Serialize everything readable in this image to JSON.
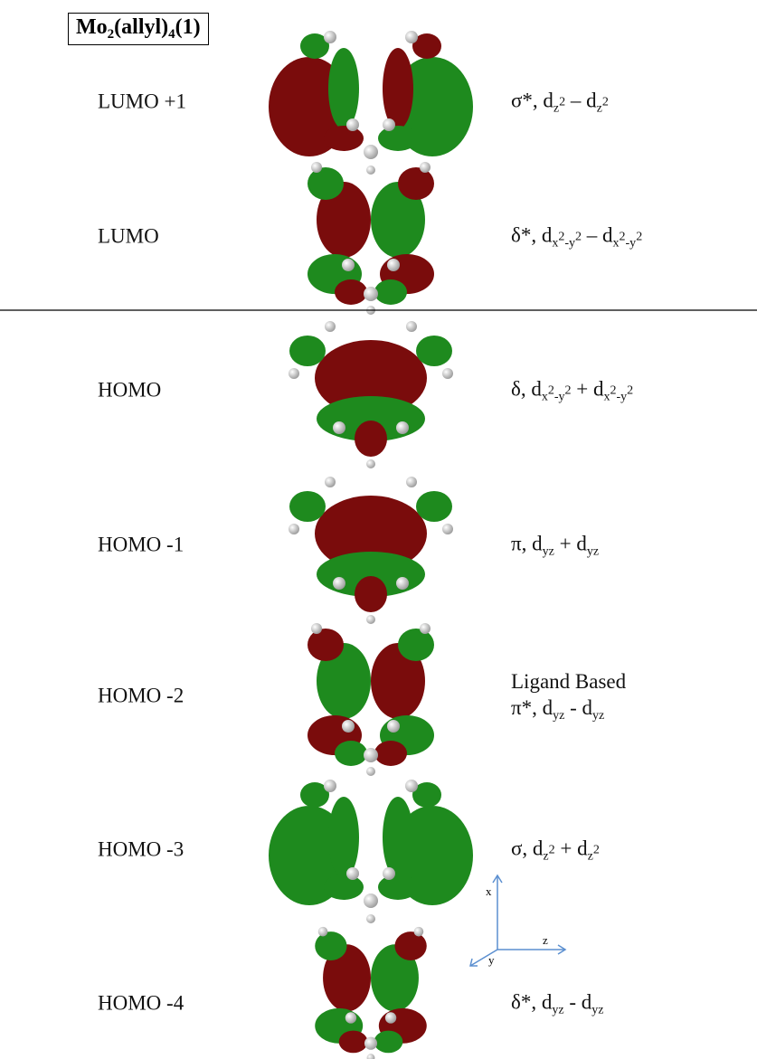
{
  "title": [
    "Mo",
    {
      "sub": "2"
    },
    "(allyl)",
    {
      "sub": "4"
    },
    "(1)"
  ],
  "rows": [
    {
      "name": "LUMO +1",
      "description": [
        [
          "σ*, d",
          {
            "sub": "z"
          },
          {
            "sup": "2"
          },
          " – d",
          {
            "sub": "z"
          },
          {
            "sup": "2"
          }
        ]
      ]
    },
    {
      "name": "LUMO",
      "description": [
        [
          "δ*, d",
          {
            "sub": "x"
          },
          {
            "sup": "2"
          },
          {
            "sub": "-y"
          },
          {
            "sup": "2"
          },
          " – d",
          {
            "sub": "x"
          },
          {
            "sup": "2"
          },
          {
            "sub": "-y"
          },
          {
            "sup": "2"
          }
        ]
      ]
    },
    {
      "name": "HOMO",
      "description": [
        [
          "δ, d",
          {
            "sub": "x"
          },
          {
            "sup": "2"
          },
          {
            "sub": "-y"
          },
          {
            "sup": "2"
          },
          " + d",
          {
            "sub": "x"
          },
          {
            "sup": "2"
          },
          {
            "sub": "-y"
          },
          {
            "sup": "2"
          }
        ]
      ]
    },
    {
      "name": "HOMO -1",
      "description": [
        [
          "π, d",
          {
            "sub": "yz"
          },
          " + d",
          {
            "sub": "yz"
          }
        ]
      ]
    },
    {
      "name": "HOMO -2",
      "description": [
        [
          "Ligand Based"
        ],
        [
          "π*, d",
          {
            "sub": "yz"
          },
          " - d",
          {
            "sub": "yz"
          }
        ]
      ]
    },
    {
      "name": "HOMO -3",
      "description": [
        [
          "σ, d",
          {
            "sub": "z"
          },
          {
            "sup": "2"
          },
          " + d",
          {
            "sub": "z"
          },
          {
            "sup": "2"
          }
        ]
      ]
    },
    {
      "name": "HOMO -4",
      "description": [
        [
          "δ*, d",
          {
            "sub": "yz"
          },
          " - d",
          {
            "sub": "yz"
          }
        ]
      ]
    }
  ],
  "axes": {
    "x": "x",
    "z": "z",
    "y": "y"
  }
}
